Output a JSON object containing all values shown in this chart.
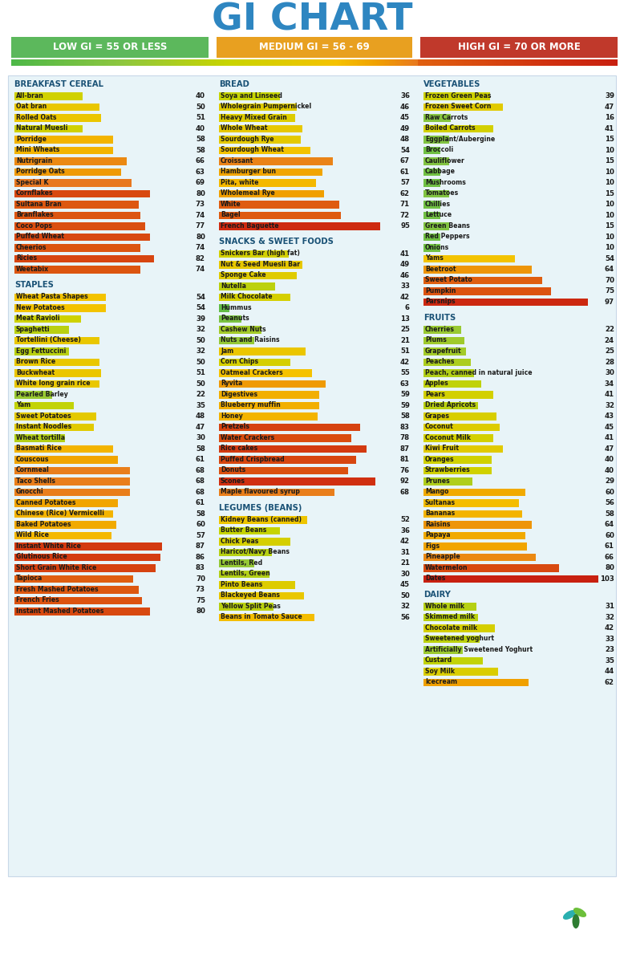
{
  "title": "GI CHART",
  "title_color": "#2E86C1",
  "legend": [
    {
      "label": "LOW GI = 55 OR LESS",
      "color": "#5CB85C"
    },
    {
      "label": "MEDIUM GI = 56 - 69",
      "color": "#E8A020"
    },
    {
      "label": "HIGH GI = 70 OR MORE",
      "color": "#C0392B"
    }
  ],
  "bg_color": "#E8F4F8",
  "section_title_color": "#1A5276",
  "item_text_color": "#1C2833",
  "value_text_color": "#1C2833",
  "columns": [
    {
      "sections": [
        {
          "title": "BREAKFAST CEREAL",
          "items": [
            {
              "name": "All-bran",
              "value": 40
            },
            {
              "name": "Oat bran",
              "value": 50
            },
            {
              "name": "Rolled Oats",
              "value": 51
            },
            {
              "name": "Natural Muesli",
              "value": 40
            },
            {
              "name": "Porridge",
              "value": 58
            },
            {
              "name": "Mini Wheats",
              "value": 58
            },
            {
              "name": "Nutrigrain",
              "value": 66
            },
            {
              "name": "Porridge Oats",
              "value": 63
            },
            {
              "name": "Special K",
              "value": 69
            },
            {
              "name": "Cornflakes",
              "value": 80
            },
            {
              "name": "Sultana Bran",
              "value": 73
            },
            {
              "name": "Branflakes",
              "value": 74
            },
            {
              "name": "Coco Pops",
              "value": 77
            },
            {
              "name": "Puffed Wheat",
              "value": 80
            },
            {
              "name": "Cheerios",
              "value": 74
            },
            {
              "name": "Ricies",
              "value": 82
            },
            {
              "name": "Weetabix",
              "value": 74
            }
          ]
        },
        {
          "title": "STAPLES",
          "items": [
            {
              "name": "Wheat Pasta Shapes",
              "value": 54
            },
            {
              "name": "New Potatoes",
              "value": 54
            },
            {
              "name": "Meat Ravioli",
              "value": 39
            },
            {
              "name": "Spaghetti",
              "value": 32
            },
            {
              "name": "Tortellini (Cheese)",
              "value": 50
            },
            {
              "name": "Egg Fettuccini",
              "value": 32
            },
            {
              "name": "Brown Rice",
              "value": 50
            },
            {
              "name": "Buckwheat",
              "value": 51
            },
            {
              "name": "White long grain rice",
              "value": 50
            },
            {
              "name": "Pearled Barley",
              "value": 22
            },
            {
              "name": "Yam",
              "value": 35
            },
            {
              "name": "Sweet Potatoes",
              "value": 48
            },
            {
              "name": "Instant Noodles",
              "value": 47
            },
            {
              "name": "Wheat tortilla",
              "value": 30
            },
            {
              "name": "Basmati Rice",
              "value": 58
            },
            {
              "name": "Couscous",
              "value": 61
            },
            {
              "name": "Cornmeal",
              "value": 68
            },
            {
              "name": "Taco Shells",
              "value": 68
            },
            {
              "name": "Gnocchi",
              "value": 68
            },
            {
              "name": "Canned Potatoes",
              "value": 61
            },
            {
              "name": "Chinese (Rice) Vermicelli",
              "value": 58
            },
            {
              "name": "Baked Potatoes",
              "value": 60
            },
            {
              "name": "Wild Rice",
              "value": 57
            },
            {
              "name": "Instant White Rice",
              "value": 87
            },
            {
              "name": "Glutinous Rice",
              "value": 86
            },
            {
              "name": "Short Grain White Rice",
              "value": 83
            },
            {
              "name": "Tapioca",
              "value": 70
            },
            {
              "name": "Fresh Mashed Potatoes",
              "value": 73
            },
            {
              "name": "French Fries",
              "value": 75
            },
            {
              "name": "Instant Mashed Potatoes",
              "value": 80
            }
          ]
        }
      ]
    },
    {
      "sections": [
        {
          "title": "BREAD",
          "items": [
            {
              "name": "Soya and Linseed",
              "value": 36
            },
            {
              "name": "Wholegrain Pumpernickel",
              "value": 46
            },
            {
              "name": "Heavy Mixed Grain",
              "value": 45
            },
            {
              "name": "Whole Wheat",
              "value": 49
            },
            {
              "name": "Sourdough Rye",
              "value": 48
            },
            {
              "name": "Sourdough Wheat",
              "value": 54
            },
            {
              "name": "Croissant",
              "value": 67
            },
            {
              "name": "Hamburger bun",
              "value": 61
            },
            {
              "name": "Pita, white",
              "value": 57
            },
            {
              "name": "Wholemeal Rye",
              "value": 62
            },
            {
              "name": "White",
              "value": 71
            },
            {
              "name": "Bagel",
              "value": 72
            },
            {
              "name": "French Baguette",
              "value": 95
            }
          ]
        },
        {
          "title": "SNACKS & SWEET FOODS",
          "items": [
            {
              "name": "Snickers Bar (high fat)",
              "value": 41
            },
            {
              "name": "Nut & Seed Muesli Bar",
              "value": 49
            },
            {
              "name": "Sponge Cake",
              "value": 46
            },
            {
              "name": "Nutella",
              "value": 33
            },
            {
              "name": "Milk Chocolate",
              "value": 42
            },
            {
              "name": "Hummus",
              "value": 6
            },
            {
              "name": "Peanuts",
              "value": 13
            },
            {
              "name": "Cashew Nuts",
              "value": 25
            },
            {
              "name": "Nuts and Raisins",
              "value": 21
            },
            {
              "name": "Jam",
              "value": 51
            },
            {
              "name": "Corn Chips",
              "value": 42
            },
            {
              "name": "Oatmeal Crackers",
              "value": 55
            },
            {
              "name": "Ryvita",
              "value": 63
            },
            {
              "name": "Digestives",
              "value": 59
            },
            {
              "name": "Blueberry muffin",
              "value": 59
            },
            {
              "name": "Honey",
              "value": 58
            },
            {
              "name": "Pretzels",
              "value": 83
            },
            {
              "name": "Water Crackers",
              "value": 78
            },
            {
              "name": "Rice cakes",
              "value": 87
            },
            {
              "name": "Puffed Crispbread",
              "value": 81
            },
            {
              "name": "Donuts",
              "value": 76
            },
            {
              "name": "Scones",
              "value": 92
            },
            {
              "name": "Maple flavoured syrup",
              "value": 68
            }
          ]
        },
        {
          "title": "LEGUMES (BEANS)",
          "items": [
            {
              "name": "Kidney Beans (canned)",
              "value": 52
            },
            {
              "name": "Butter Beans",
              "value": 36
            },
            {
              "name": "Chick Peas",
              "value": 42
            },
            {
              "name": "Haricot/Navy Beans",
              "value": 31
            },
            {
              "name": "Lentils, Red",
              "value": 21
            },
            {
              "name": "Lentils, Green",
              "value": 30
            },
            {
              "name": "Pinto Beans",
              "value": 45
            },
            {
              "name": "Blackeyed Beans",
              "value": 50
            },
            {
              "name": "Yellow Split Peas",
              "value": 32
            },
            {
              "name": "Beans in Tomato Sauce",
              "value": 56
            }
          ]
        }
      ]
    },
    {
      "sections": [
        {
          "title": "VEGETABLES",
          "items": [
            {
              "name": "Frozen Green Peas",
              "value": 39
            },
            {
              "name": "Frozen Sweet Corn",
              "value": 47
            },
            {
              "name": "Raw Carrots",
              "value": 16
            },
            {
              "name": "Boiled Carrots",
              "value": 41
            },
            {
              "name": "Eggplant/Aubergine",
              "value": 15
            },
            {
              "name": "Broccoli",
              "value": 10
            },
            {
              "name": "Cauliflower",
              "value": 15
            },
            {
              "name": "Cabbage",
              "value": 10
            },
            {
              "name": "Mushrooms",
              "value": 10
            },
            {
              "name": "Tomatoes",
              "value": 15
            },
            {
              "name": "Chillies",
              "value": 10
            },
            {
              "name": "Lettuce",
              "value": 10
            },
            {
              "name": "Green Beans",
              "value": 15
            },
            {
              "name": "Red Peppers",
              "value": 10
            },
            {
              "name": "Onions",
              "value": 10
            },
            {
              "name": "Yams",
              "value": 54
            },
            {
              "name": "Beetroot",
              "value": 64
            },
            {
              "name": "Sweet Potato",
              "value": 70
            },
            {
              "name": "Pumpkin",
              "value": 75
            },
            {
              "name": "Parsnips",
              "value": 97
            }
          ]
        },
        {
          "title": "FRUITS",
          "items": [
            {
              "name": "Cherries",
              "value": 22
            },
            {
              "name": "Plums",
              "value": 24
            },
            {
              "name": "Grapefruit",
              "value": 25
            },
            {
              "name": "Peaches",
              "value": 28
            },
            {
              "name": "Peach, canned in natural juice",
              "value": 30
            },
            {
              "name": "Apples",
              "value": 34
            },
            {
              "name": "Pears",
              "value": 41
            },
            {
              "name": "Dried Apricots",
              "value": 32
            },
            {
              "name": "Grapes",
              "value": 43
            },
            {
              "name": "Coconut",
              "value": 45
            },
            {
              "name": "Coconut Milk",
              "value": 41
            },
            {
              "name": "Kiwi Fruit",
              "value": 47
            },
            {
              "name": "Oranges",
              "value": 40
            },
            {
              "name": "Strawberries",
              "value": 40
            },
            {
              "name": "Prunes",
              "value": 29
            },
            {
              "name": "Mango",
              "value": 60
            },
            {
              "name": "Sultanas",
              "value": 56
            },
            {
              "name": "Bananas",
              "value": 58
            },
            {
              "name": "Raisins",
              "value": 64
            },
            {
              "name": "Papaya",
              "value": 60
            },
            {
              "name": "Figs",
              "value": 61
            },
            {
              "name": "Pineapple",
              "value": 66
            },
            {
              "name": "Watermelon",
              "value": 80
            },
            {
              "name": "Dates",
              "value": 103
            }
          ]
        },
        {
          "title": "DAIRY",
          "items": [
            {
              "name": "Whole milk",
              "value": 31
            },
            {
              "name": "Skimmed milk",
              "value": 32
            },
            {
              "name": "Chocolate milk",
              "value": 42
            },
            {
              "name": "Sweetened yoghurt",
              "value": 33
            },
            {
              "name": "Artificially Sweetened Yoghurt",
              "value": 23
            },
            {
              "name": "Custard",
              "value": 35
            },
            {
              "name": "Soy Milk",
              "value": 44
            },
            {
              "name": "Icecream",
              "value": 62
            }
          ]
        }
      ]
    }
  ]
}
